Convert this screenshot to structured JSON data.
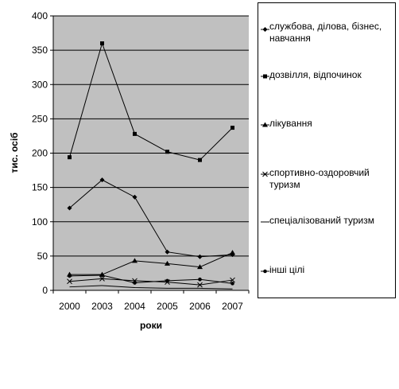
{
  "chart_data": {
    "type": "line",
    "title": "",
    "xlabel": "роки",
    "ylabel": "тис. осіб",
    "categories": [
      "2000",
      "2003",
      "2004",
      "2005",
      "2006",
      "2007"
    ],
    "ylim": [
      0,
      400
    ],
    "yticks": [
      0,
      50,
      100,
      150,
      200,
      250,
      300,
      350,
      400
    ],
    "grid": true,
    "legend_position": "right",
    "plot_background": "#c0c0c0",
    "line_color": "#000000",
    "series": [
      {
        "name": "службова, ділова, бізнес, навчання",
        "marker": "diamond",
        "values": [
          120,
          161,
          136,
          56,
          49,
          52
        ]
      },
      {
        "name": "дозвілля, відпочинок",
        "marker": "square",
        "values": [
          194,
          360,
          228,
          202,
          190,
          237
        ]
      },
      {
        "name": "лікування",
        "marker": "triangle",
        "values": [
          23,
          23,
          43,
          39,
          34,
          55
        ]
      },
      {
        "name": "спортивно-оздоровчий туризм",
        "marker": "x",
        "values": [
          13,
          17,
          14,
          12,
          8,
          15
        ]
      },
      {
        "name": "спеціалізований туризм",
        "marker": "none",
        "values": [
          5,
          7,
          4,
          3,
          3,
          2
        ]
      },
      {
        "name": "інші цілі",
        "marker": "circle",
        "values": [
          21,
          22,
          11,
          14,
          16,
          10
        ]
      }
    ]
  }
}
